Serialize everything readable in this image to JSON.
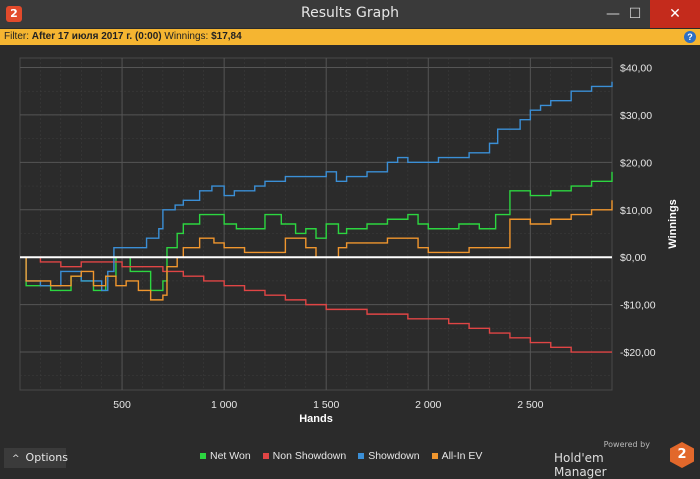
{
  "window": {
    "title": "Results Graph",
    "app_icon": "2",
    "minimize_glyph": "—",
    "maximize_glyph": "☐",
    "close_glyph": "✕"
  },
  "filter": {
    "prefix": "Filter:",
    "value": "After 17 июля 2017 г. (0:00)",
    "winnings_label": "Winnings:",
    "winnings_value": "$17,84",
    "help_glyph": "?"
  },
  "options_label": "Options",
  "brand": {
    "powered": "Powered by",
    "name": "Hold'em Manager",
    "logo": "2"
  },
  "colors": {
    "net_won": "#2cd640",
    "non_showdown": "#e04545",
    "showdown": "#3b8fd6",
    "all_in_ev": "#f0962e",
    "zero_line": "#ffffff",
    "plot_bg": "#2b2b2b",
    "grid": "#3f3f3f"
  },
  "chart_data": {
    "type": "line",
    "xlabel": "Hands",
    "ylabel": "Winnings",
    "xlim": [
      0,
      2900
    ],
    "ylim": [
      -28,
      42
    ],
    "x_ticks": [
      500,
      1000,
      1500,
      2000,
      2500
    ],
    "x_tick_labels": [
      "500",
      "1 000",
      "1 500",
      "2 000",
      "2 500"
    ],
    "y_ticks": [
      40,
      30,
      20,
      10,
      0,
      -10,
      -20
    ],
    "y_tick_labels": [
      "$40,00",
      "$30,00",
      "$20,00",
      "$10,00",
      "$0,00",
      "-$10,00",
      "-$20,00"
    ],
    "grid": true,
    "legend_position": "bottom",
    "series": [
      {
        "name": "Net Won",
        "color_key": "net_won",
        "x": [
          0,
          30,
          150,
          250,
          300,
          360,
          420,
          470,
          540,
          580,
          640,
          700,
          720,
          770,
          800,
          880,
          950,
          1000,
          1060,
          1100,
          1200,
          1280,
          1350,
          1400,
          1450,
          1500,
          1560,
          1600,
          1700,
          1800,
          1900,
          1950,
          2000,
          2050,
          2150,
          2250,
          2330,
          2400,
          2450,
          2500,
          2600,
          2700,
          2800,
          2900
        ],
        "y": [
          0,
          -6,
          -7,
          -4,
          -5,
          -7,
          -4,
          0,
          -3,
          -3,
          -7,
          -5,
          2,
          5,
          7,
          9,
          9,
          7,
          6,
          6,
          9,
          7,
          5,
          6,
          4,
          7,
          5,
          6,
          7,
          8,
          9,
          7,
          6,
          6,
          7,
          6,
          9,
          14,
          14,
          13,
          14,
          15,
          16,
          18
        ]
      },
      {
        "name": "Non Showdown",
        "color_key": "non_showdown",
        "x": [
          0,
          100,
          200,
          300,
          400,
          500,
          600,
          700,
          800,
          900,
          1000,
          1100,
          1200,
          1300,
          1400,
          1500,
          1600,
          1700,
          1800,
          1900,
          2000,
          2100,
          2200,
          2300,
          2400,
          2500,
          2600,
          2700,
          2800,
          2900
        ],
        "y": [
          0,
          -1,
          -2,
          -1,
          -1,
          -2,
          -2,
          -3,
          -4,
          -5,
          -6,
          -7,
          -8,
          -9,
          -10,
          -11,
          -11,
          -12,
          -12,
          -13,
          -13,
          -14,
          -15,
          -16,
          -17,
          -18,
          -19,
          -20,
          -20,
          -20
        ]
      },
      {
        "name": "Showdown",
        "color_key": "showdown",
        "x": [
          0,
          30,
          100,
          200,
          300,
          400,
          430,
          460,
          560,
          620,
          680,
          700,
          760,
          800,
          880,
          940,
          1000,
          1050,
          1150,
          1200,
          1300,
          1400,
          1500,
          1550,
          1600,
          1700,
          1800,
          1850,
          1900,
          2000,
          2050,
          2100,
          2200,
          2300,
          2340,
          2400,
          2450,
          2500,
          2550,
          2600,
          2700,
          2800,
          2900
        ],
        "y": [
          0,
          -5,
          -6,
          -3,
          -5,
          -7,
          -3,
          2,
          2,
          4,
          6,
          10,
          11,
          12,
          14,
          15,
          13,
          14,
          15,
          16,
          17,
          17,
          18,
          16,
          17,
          18,
          20,
          21,
          20,
          20,
          21,
          21,
          22,
          24,
          27,
          27,
          29,
          31,
          32,
          33,
          35,
          36,
          37
        ]
      },
      {
        "name": "All-In EV",
        "color_key": "all_in_ev",
        "x": [
          0,
          30,
          150,
          250,
          300,
          360,
          420,
          470,
          520,
          580,
          640,
          700,
          720,
          770,
          800,
          880,
          950,
          1000,
          1100,
          1200,
          1300,
          1400,
          1450,
          1500,
          1560,
          1600,
          1700,
          1800,
          1900,
          1950,
          2000,
          2100,
          2200,
          2330,
          2400,
          2450,
          2500,
          2600,
          2700,
          2800,
          2900
        ],
        "y": [
          0,
          -5,
          -6,
          -4,
          -3,
          -6,
          -4,
          -6,
          -5,
          -7,
          -9,
          -8,
          -2,
          0,
          2,
          4,
          3,
          2,
          1,
          1,
          4,
          2,
          0,
          0,
          2,
          3,
          3,
          4,
          4,
          2,
          1,
          1,
          2,
          2,
          8,
          8,
          7,
          8,
          9,
          10,
          12
        ]
      }
    ]
  },
  "legend": [
    {
      "label": "Net Won",
      "color_key": "net_won"
    },
    {
      "label": "Non Showdown",
      "color_key": "non_showdown"
    },
    {
      "label": "Showdown",
      "color_key": "showdown"
    },
    {
      "label": "All-In EV",
      "color_key": "all_in_ev"
    }
  ]
}
